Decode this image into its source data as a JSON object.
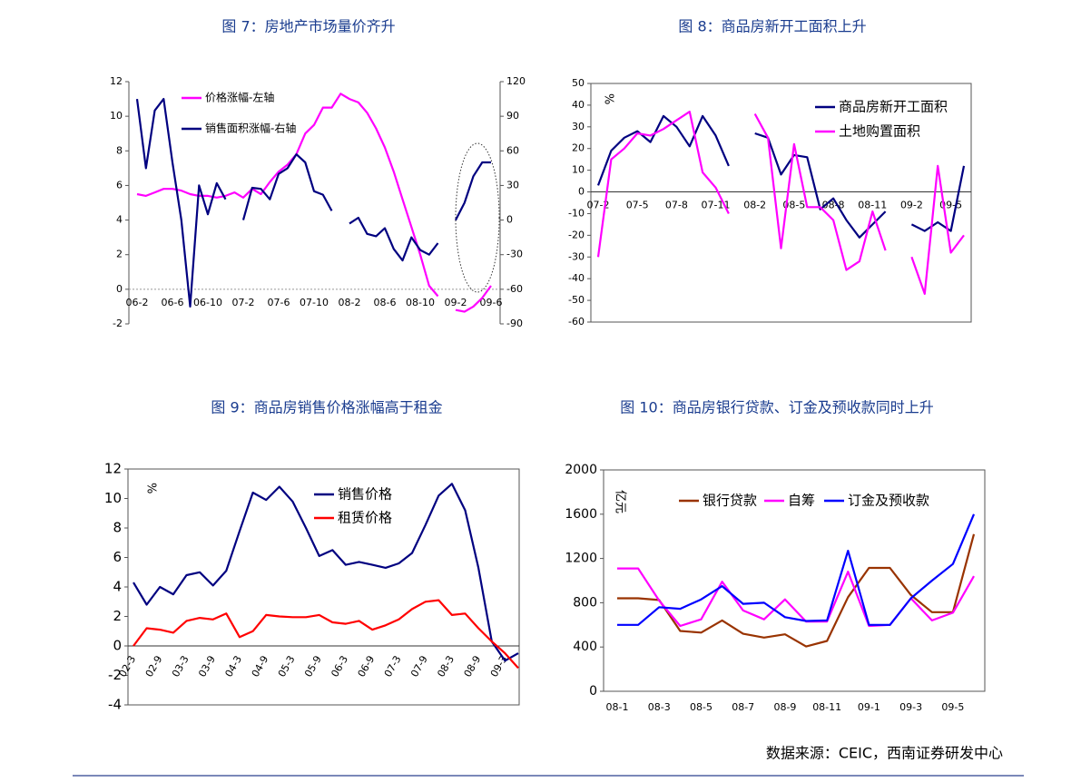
{
  "chart_data": [
    {
      "type": "line",
      "title": "图 7：房地产市场量价齐升",
      "categories": [
        "06-2",
        null,
        null,
        null,
        "06-6",
        null,
        null,
        null,
        "06-10",
        null,
        null,
        null,
        "07-2",
        null,
        null,
        null,
        "07-6",
        null,
        null,
        null,
        "07-10",
        null,
        null,
        null,
        "08-2",
        null,
        null,
        null,
        "08-6",
        null,
        null,
        null,
        "08-10",
        null,
        null,
        null,
        "09-2",
        null,
        null,
        null,
        "09-6"
      ],
      "ylim": [
        -2,
        12
      ],
      "yticks": [
        -2,
        0,
        2,
        4,
        6,
        8,
        10,
        12
      ],
      "y2lim": [
        -90,
        120
      ],
      "y2ticks": [
        -90,
        -60,
        -30,
        0,
        30,
        60,
        90,
        120
      ],
      "series": [
        {
          "name": "价格涨幅-左轴",
          "color": "#ff00ff",
          "values": [
            5.5,
            5.4,
            5.6,
            5.8,
            5.8,
            5.7,
            5.5,
            5.4,
            5.4,
            5.3,
            5.4,
            5.6,
            5.3,
            5.8,
            5.5,
            6.2,
            6.8,
            7.2,
            7.8,
            9.0,
            9.5,
            10.5,
            10.5,
            11.3,
            11.0,
            10.8,
            10.2,
            9.3,
            8.2,
            6.8,
            5.2,
            3.6,
            2.0,
            0.2,
            -0.4,
            null,
            -1.2,
            -1.3,
            -1.0,
            -0.5,
            0.2
          ]
        },
        {
          "name": "销售面积涨幅-右轴",
          "color": "#000080",
          "axis": "y2",
          "values": [
            105,
            45,
            95,
            105,
            50,
            0,
            -75,
            30,
            5,
            32,
            18,
            null,
            0,
            28,
            27,
            18,
            40,
            45,
            57,
            50,
            25,
            22,
            8,
            null,
            -3,
            2,
            -12,
            -14,
            -7,
            -25,
            -35,
            -15,
            -26,
            -30,
            -20,
            null,
            0,
            15,
            38,
            50,
            50
          ]
        }
      ]
    },
    {
      "type": "line",
      "title": "图 8：商品房新开工面积上升",
      "y_label": "%",
      "categories": [
        "07-2",
        null,
        null,
        "07-5",
        null,
        null,
        "07-8",
        null,
        null,
        "07-11",
        null,
        null,
        "08-2",
        null,
        null,
        "08-5",
        null,
        null,
        "08-8",
        null,
        null,
        "08-11",
        null,
        null,
        "09-2",
        null,
        null,
        "09-5",
        null
      ],
      "ylim": [
        -60,
        50
      ],
      "yticks": [
        -60,
        -50,
        -40,
        -30,
        -20,
        -10,
        0,
        10,
        20,
        30,
        40,
        50
      ],
      "series": [
        {
          "name": "商品房新开工面积",
          "color": "#000080",
          "values": [
            3,
            19,
            25,
            28,
            23,
            35,
            30,
            21,
            35,
            26,
            12,
            null,
            27,
            25,
            8,
            17,
            16,
            -8,
            -3,
            -13,
            -21,
            -15,
            -9,
            null,
            -15,
            -18,
            -14,
            -18,
            12
          ]
        },
        {
          "name": "土地购置面积",
          "color": "#ff00ff",
          "values": [
            -30,
            15,
            20,
            27,
            26,
            29,
            33,
            37,
            9,
            2,
            -10,
            null,
            36,
            25,
            -26,
            22,
            -7,
            -7,
            -13,
            -36,
            -32,
            -9,
            -27,
            null,
            -30,
            -47,
            12,
            -28,
            -20
          ]
        }
      ]
    },
    {
      "type": "line",
      "title": "图 9：商品房销售价格涨幅高于租金",
      "y_label": "%",
      "categories": [
        "02-3",
        null,
        "02-9",
        null,
        "03-3",
        null,
        "03-9",
        null,
        "04-3",
        null,
        "04-9",
        null,
        "05-3",
        null,
        "05-9",
        null,
        "06-3",
        null,
        "06-9",
        null,
        "07-3",
        null,
        "07-9",
        null,
        "08-3",
        null,
        "08-9",
        null,
        "09-3",
        null
      ],
      "ylim": [
        -4,
        12
      ],
      "yticks": [
        -4,
        -2,
        0,
        2,
        4,
        6,
        8,
        10,
        12
      ],
      "series": [
        {
          "name": "销售价格",
          "color": "#000080",
          "values": [
            4.3,
            2.8,
            4.0,
            3.5,
            4.8,
            5.0,
            4.1,
            5.1,
            7.8,
            10.4,
            9.9,
            10.8,
            9.8,
            8.0,
            6.1,
            6.5,
            5.5,
            5.7,
            5.5,
            5.3,
            5.6,
            6.3,
            8.2,
            10.2,
            11.0,
            9.2,
            5.3,
            0.3,
            -1.0,
            -0.5
          ]
        },
        {
          "name": "租赁价格",
          "color": "#ff0000",
          "values": [
            0,
            1.2,
            1.1,
            0.9,
            1.7,
            1.9,
            1.8,
            2.2,
            0.6,
            1.0,
            2.1,
            2.0,
            1.95,
            1.95,
            2.1,
            1.6,
            1.5,
            1.7,
            1.1,
            1.4,
            1.8,
            2.5,
            3.0,
            3.1,
            2.1,
            2.2,
            1.2,
            0.3,
            -0.5,
            -1.5
          ]
        }
      ]
    },
    {
      "type": "line",
      "title": "图 10：商品房银行贷款、订金及预收款同时上升",
      "y_label": "亿元",
      "categories": [
        "08-1",
        null,
        "08-3",
        null,
        "08-5",
        null,
        "08-7",
        null,
        "08-9",
        null,
        "08-11",
        null,
        "09-1",
        null,
        "09-3",
        null,
        "09-5",
        null
      ],
      "ylim": [
        0,
        2000
      ],
      "yticks": [
        0,
        400,
        800,
        1200,
        1600,
        2000
      ],
      "series": [
        {
          "name": "银行贷款",
          "color": "#993300",
          "values": [
            840,
            840,
            825,
            545,
            530,
            640,
            520,
            485,
            515,
            405,
            455,
            850,
            1115,
            1115,
            870,
            715,
            715,
            1420
          ]
        },
        {
          "name": "自筹",
          "color": "#ff00ff",
          "values": [
            1110,
            1110,
            820,
            590,
            650,
            990,
            730,
            650,
            830,
            630,
            630,
            1080,
            590,
            600,
            840,
            640,
            710,
            1040
          ]
        },
        {
          "name": "订金及预收款",
          "color": "#0000ff",
          "values": [
            600,
            600,
            760,
            745,
            830,
            950,
            790,
            800,
            670,
            635,
            640,
            1270,
            600,
            600,
            840,
            1000,
            1150,
            1600
          ]
        }
      ]
    }
  ],
  "source": "数据来源：CEIC，西南证券研发中心"
}
